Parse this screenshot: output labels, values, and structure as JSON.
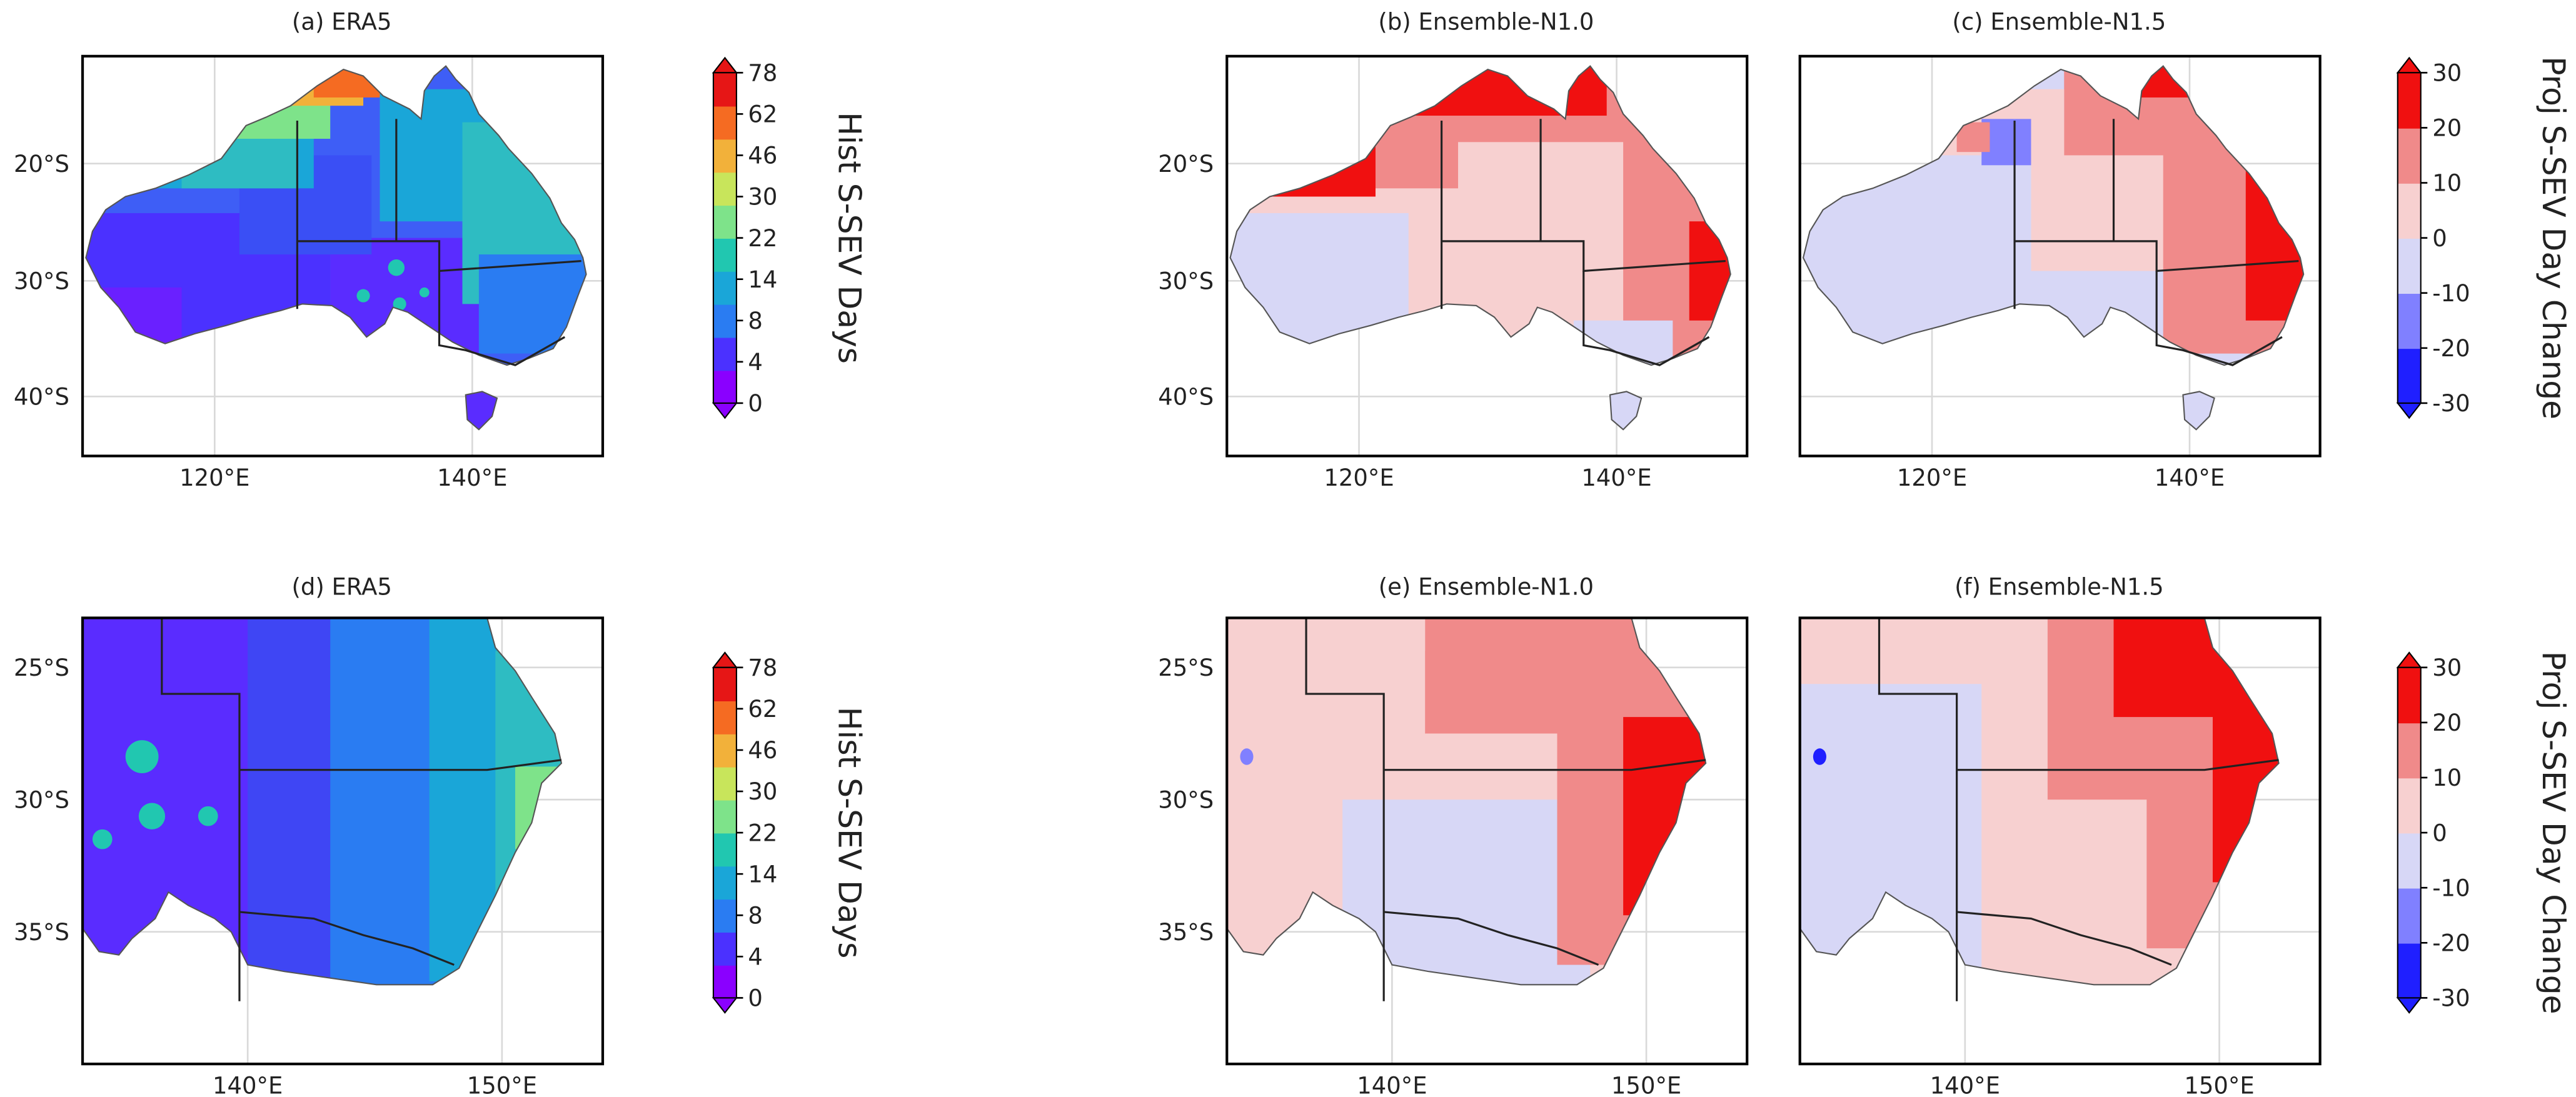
{
  "figure": {
    "panels": [
      {
        "id": "a",
        "title": "(a) ERA5",
        "kind": "hist",
        "region": "aus"
      },
      {
        "id": "b",
        "title": "(b) Ensemble-N1.0",
        "kind": "change10",
        "region": "aus"
      },
      {
        "id": "c",
        "title": "(c) Ensemble-N1.5",
        "kind": "change15",
        "region": "aus"
      },
      {
        "id": "d",
        "title": "(d) ERA5",
        "kind": "hist",
        "region": "se"
      },
      {
        "id": "e",
        "title": "(e) Ensemble-N1.0",
        "kind": "change10",
        "region": "se"
      },
      {
        "id": "f",
        "title": "(f) Ensemble-N1.5",
        "kind": "change15",
        "region": "se"
      }
    ],
    "axes": {
      "aus": {
        "lat_ticks": [
          "20°S",
          "30°S",
          "40°S"
        ],
        "lon_ticks": [
          "120°E",
          "140°E"
        ]
      },
      "se": {
        "lat_ticks": [
          "25°S",
          "30°S",
          "35°S"
        ],
        "lon_ticks": [
          "140°E",
          "150°E"
        ]
      }
    },
    "colorbars": [
      {
        "id": "hist-top",
        "label": "Hist S-SEV Days",
        "ticks": [
          "0",
          "4",
          "8",
          "14",
          "22",
          "30",
          "46",
          "62",
          "78"
        ],
        "colors": [
          "#8a00ff",
          "#4b31ff",
          "#2a7cf2",
          "#1aa6d8",
          "#21c7b0",
          "#7ee38a",
          "#c8e55b",
          "#f2b13a",
          "#f56b22",
          "#e61616"
        ]
      },
      {
        "id": "change-top",
        "label": "Proj S-SEV Day Change",
        "ticks": [
          "-30",
          "-20",
          "-10",
          "0",
          "10",
          "20",
          "30"
        ],
        "colors": [
          "#1f1fff",
          "#8080ff",
          "#d7d7f6",
          "#f7d0d0",
          "#f08a8a",
          "#f01010"
        ]
      },
      {
        "id": "hist-bottom",
        "label": "Hist S-SEV Days",
        "ticks": [
          "0",
          "4",
          "8",
          "14",
          "22",
          "30",
          "46",
          "62",
          "78"
        ],
        "colors": [
          "#8a00ff",
          "#4b31ff",
          "#2a7cf2",
          "#1aa6d8",
          "#21c7b0",
          "#7ee38a",
          "#c8e55b",
          "#f2b13a",
          "#f56b22",
          "#e61616"
        ]
      },
      {
        "id": "change-bottom",
        "label": "Proj S-SEV Day Change",
        "ticks": [
          "-30",
          "-20",
          "-10",
          "0",
          "10",
          "20",
          "30"
        ],
        "colors": [
          "#1f1fff",
          "#8080ff",
          "#d7d7f6",
          "#f7d0d0",
          "#f08a8a",
          "#f01010"
        ]
      }
    ]
  }
}
